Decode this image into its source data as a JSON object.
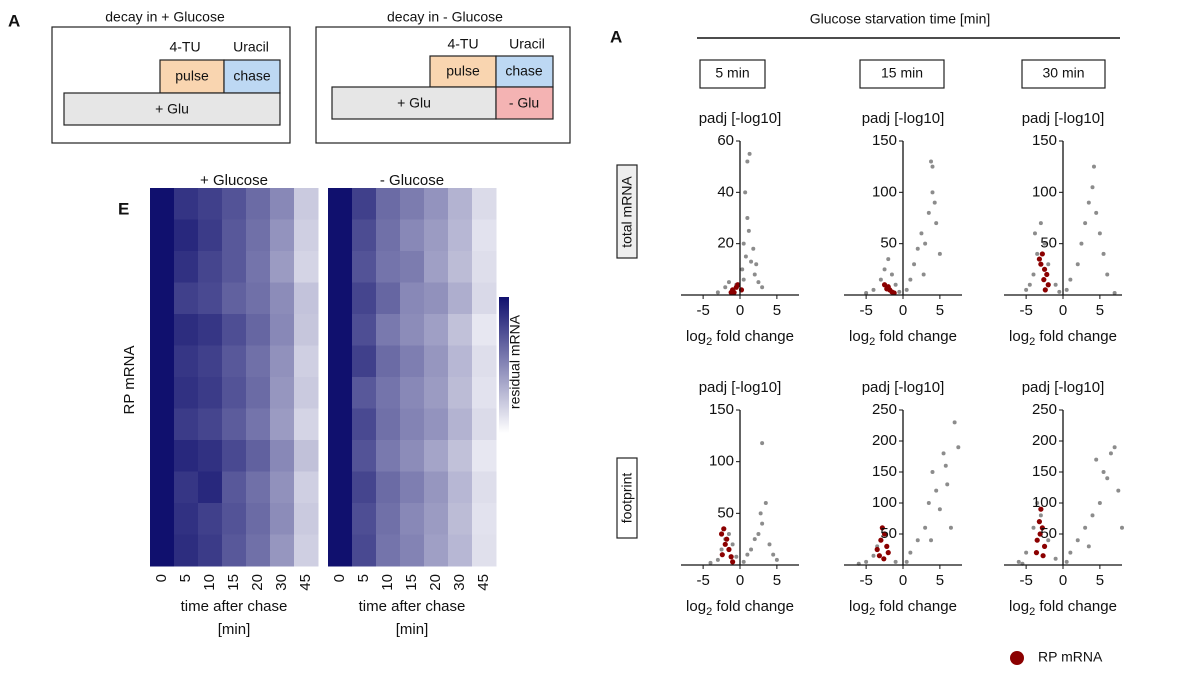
{
  "panel_letters": {
    "left": "A",
    "heatmap": "E",
    "right": "A"
  },
  "diagrams": [
    {
      "title": "decay in + Glucose",
      "labels": [
        "4-TU",
        "Uracil"
      ],
      "boxes": [
        "pulse",
        "chase",
        "+ Glu"
      ]
    },
    {
      "title": "decay in - Glucose",
      "labels": [
        "4-TU",
        "Uracil"
      ],
      "boxes": [
        "pulse",
        "chase",
        "+ Glu",
        "- Glu"
      ]
    }
  ],
  "heatmap": {
    "type": "heatmap",
    "y_label": "RP mRNA",
    "x_label": "time after chase",
    "x_unit": "[min]",
    "colorbar_label": "residual mRNA",
    "columns": [
      0,
      5,
      10,
      15,
      20,
      30,
      45
    ],
    "panels": [
      {
        "title": "+ Glucose",
        "rows": [
          [
            1,
            0.85,
            0.8,
            0.72,
            0.62,
            0.5,
            0.22
          ],
          [
            1,
            0.9,
            0.82,
            0.7,
            0.6,
            0.45,
            0.2
          ],
          [
            1,
            0.86,
            0.78,
            0.7,
            0.58,
            0.42,
            0.18
          ],
          [
            1,
            0.8,
            0.76,
            0.66,
            0.6,
            0.48,
            0.25
          ],
          [
            1,
            0.88,
            0.84,
            0.74,
            0.64,
            0.5,
            0.24
          ],
          [
            1,
            0.84,
            0.8,
            0.7,
            0.6,
            0.46,
            0.2
          ],
          [
            1,
            0.86,
            0.82,
            0.72,
            0.62,
            0.44,
            0.22
          ],
          [
            1,
            0.82,
            0.78,
            0.68,
            0.58,
            0.42,
            0.18
          ],
          [
            1,
            0.9,
            0.86,
            0.76,
            0.66,
            0.5,
            0.26
          ],
          [
            1,
            0.84,
            0.9,
            0.7,
            0.6,
            0.46,
            0.2
          ],
          [
            1,
            0.86,
            0.8,
            0.72,
            0.62,
            0.48,
            0.22
          ],
          [
            1,
            0.88,
            0.82,
            0.7,
            0.6,
            0.44,
            0.2
          ]
        ]
      },
      {
        "title": "- Glucose",
        "rows": [
          [
            1,
            0.8,
            0.62,
            0.55,
            0.45,
            0.32,
            0.15
          ],
          [
            1,
            0.75,
            0.6,
            0.5,
            0.42,
            0.3,
            0.12
          ],
          [
            1,
            0.72,
            0.58,
            0.55,
            0.4,
            0.28,
            0.14
          ],
          [
            1,
            0.78,
            0.64,
            0.5,
            0.46,
            0.34,
            0.16
          ],
          [
            1,
            0.74,
            0.56,
            0.48,
            0.4,
            0.26,
            0.1
          ],
          [
            1,
            0.8,
            0.62,
            0.54,
            0.44,
            0.3,
            0.14
          ],
          [
            1,
            0.7,
            0.58,
            0.5,
            0.42,
            0.28,
            0.12
          ],
          [
            1,
            0.76,
            0.6,
            0.52,
            0.45,
            0.32,
            0.15
          ],
          [
            1,
            0.72,
            0.56,
            0.48,
            0.38,
            0.26,
            0.1
          ],
          [
            1,
            0.78,
            0.62,
            0.54,
            0.44,
            0.3,
            0.14
          ],
          [
            1,
            0.74,
            0.6,
            0.5,
            0.42,
            0.28,
            0.12
          ],
          [
            1,
            0.76,
            0.58,
            0.52,
            0.4,
            0.3,
            0.13
          ]
        ]
      }
    ]
  },
  "volcano": {
    "header": "Glucose starvation time [min]",
    "times": [
      "5 min",
      "15 min",
      "30 min"
    ],
    "rows": [
      "total mRNA",
      "footprint"
    ],
    "y_label": "padj [-log10]",
    "x_label": {
      "base": "log",
      "sub": "2",
      "rest": " fold change"
    },
    "legend": "RP mRNA",
    "rp_color": "#8b0000",
    "gray_color": "#8c8c8c",
    "xlim": [
      -8,
      8
    ],
    "xticks": [
      -5,
      0,
      5
    ],
    "charts": [
      {
        "type": "scatter",
        "ylim": [
          0,
          60
        ],
        "yticks": [
          20,
          40,
          60
        ],
        "gray": {
          "x": [
            -2,
            -1.5,
            -1,
            -0.5,
            0.3,
            0.5,
            0.8,
            1,
            1.2,
            1.5,
            2,
            2.5,
            3,
            1,
            0.7,
            1.8,
            0.5,
            -3,
            2.2,
            1.3
          ],
          "y": [
            3,
            5,
            2,
            4,
            10,
            20,
            15,
            30,
            25,
            13,
            8,
            5,
            3,
            52,
            40,
            18,
            6,
            1,
            12,
            55
          ]
        },
        "rp": {
          "x": [
            -1,
            -0.5,
            -0.8,
            -0.3,
            0.2,
            -1.2
          ],
          "y": [
            2,
            3,
            1,
            4,
            2,
            1
          ]
        }
      },
      {
        "type": "scatter",
        "ylim": [
          0,
          150
        ],
        "yticks": [
          50,
          100,
          150
        ],
        "gray": {
          "x": [
            -4,
            -3,
            -2.5,
            -2,
            -1.5,
            -1,
            -0.5,
            0.5,
            1,
            1.5,
            2,
            2.5,
            3,
            3.5,
            4,
            4.5,
            5,
            4,
            3.8,
            4.3,
            2.8,
            -5
          ],
          "y": [
            5,
            15,
            25,
            35,
            20,
            10,
            3,
            5,
            15,
            30,
            45,
            60,
            50,
            80,
            100,
            70,
            40,
            125,
            130,
            90,
            20,
            2
          ]
        },
        "rp": {
          "x": [
            -2.5,
            -2,
            -1.8,
            -1.5,
            -1.2,
            -2.2
          ],
          "y": [
            10,
            8,
            5,
            3,
            2,
            6
          ]
        }
      },
      {
        "type": "scatter",
        "ylim": [
          0,
          150
        ],
        "yticks": [
          50,
          100,
          150
        ],
        "gray": {
          "x": [
            -5,
            -4,
            -3.5,
            -3,
            -2.5,
            -2,
            -1,
            -0.5,
            0.5,
            1,
            2,
            2.5,
            3,
            3.5,
            4,
            4.5,
            5,
            5.5,
            6,
            4.2,
            -4.5,
            -3.8,
            7
          ],
          "y": [
            5,
            20,
            40,
            70,
            50,
            30,
            10,
            3,
            5,
            15,
            30,
            50,
            70,
            90,
            105,
            80,
            60,
            40,
            20,
            125,
            10,
            60,
            2
          ]
        },
        "rp": {
          "x": [
            -3,
            -2.8,
            -2.5,
            -2.2,
            -2,
            -3.2,
            -2.6,
            -2.4
          ],
          "y": [
            30,
            40,
            25,
            20,
            10,
            35,
            15,
            5
          ]
        }
      },
      {
        "type": "scatter",
        "ylim": [
          0,
          150
        ],
        "yticks": [
          50,
          100,
          150
        ],
        "gray": {
          "x": [
            -3,
            -2.5,
            -2,
            -1.5,
            -1,
            -0.5,
            0.5,
            1,
            1.5,
            2,
            2.5,
            3,
            3.5,
            4,
            4.5,
            5,
            2.8,
            3,
            -4
          ],
          "y": [
            5,
            15,
            25,
            30,
            20,
            8,
            3,
            10,
            15,
            25,
            30,
            40,
            60,
            20,
            10,
            5,
            50,
            118,
            2
          ]
        },
        "rp": {
          "x": [
            -2.5,
            -2.2,
            -2,
            -1.8,
            -1.5,
            -1.2,
            -2.4,
            -1
          ],
          "y": [
            30,
            35,
            20,
            25,
            15,
            8,
            10,
            3
          ]
        }
      },
      {
        "type": "scatter",
        "ylim": [
          0,
          250
        ],
        "yticks": [
          50,
          100,
          150,
          200,
          250
        ],
        "gray": {
          "x": [
            -5,
            -4,
            -3.5,
            -3,
            -2,
            -1,
            0.5,
            1,
            2,
            3,
            3.5,
            4,
            4.5,
            5,
            5.5,
            6,
            6.5,
            7,
            7.5,
            5.8,
            3.8,
            -6
          ],
          "y": [
            5,
            15,
            30,
            40,
            20,
            5,
            5,
            20,
            40,
            60,
            100,
            150,
            120,
            90,
            180,
            130,
            60,
            230,
            190,
            160,
            40,
            2
          ]
        },
        "rp": {
          "x": [
            -3.5,
            -3,
            -2.8,
            -2.5,
            -2.2,
            -2,
            -3.2,
            -2.6
          ],
          "y": [
            25,
            40,
            60,
            50,
            30,
            20,
            15,
            10
          ]
        }
      },
      {
        "type": "scatter",
        "ylim": [
          0,
          250
        ],
        "yticks": [
          50,
          100,
          150,
          200,
          250
        ],
        "gray": {
          "x": [
            -6,
            -5,
            -4,
            -3.5,
            -3,
            -2,
            -1,
            0.5,
            1,
            2,
            3,
            4,
            5,
            6,
            6.5,
            7,
            7.5,
            8,
            5.5,
            4.5,
            -5.5,
            3.5
          ],
          "y": [
            5,
            20,
            60,
            100,
            80,
            40,
            10,
            5,
            20,
            40,
            60,
            80,
            100,
            140,
            180,
            190,
            120,
            60,
            150,
            170,
            2,
            30
          ]
        },
        "rp": {
          "x": [
            -3.5,
            -3.2,
            -3,
            -2.8,
            -2.5,
            -3.6,
            -2.7,
            -3.1
          ],
          "y": [
            40,
            70,
            90,
            60,
            30,
            20,
            15,
            50
          ]
        }
      }
    ]
  }
}
